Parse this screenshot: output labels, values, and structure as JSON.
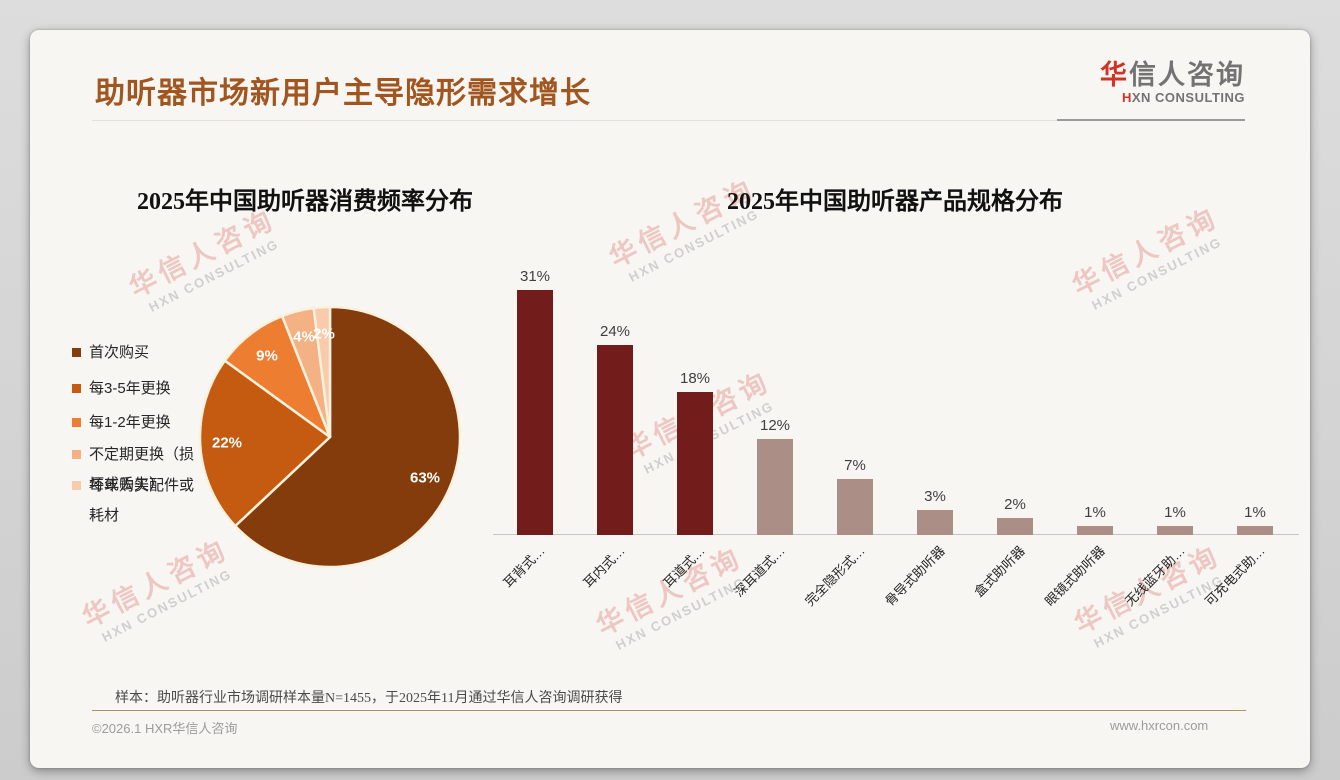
{
  "page": {
    "title": "助听器市场新用户主导隐形需求增长",
    "logo": {
      "zh_first": "华",
      "zh_rest": "信人咨询",
      "en_first": "H",
      "en_rest": "XN CONSULTING"
    },
    "watermark": {
      "zh": "华信人咨询",
      "en": "HXN CONSULTING"
    },
    "footnote": "样本：助听器行业市场调研样本量N=1455，于2025年11月通过华信人咨询调研获得",
    "copyright": "©2026.1 HXR华信人咨询",
    "website": "www.hxrcon.com"
  },
  "colors": {
    "title_text": "#A2561F",
    "logo_red": "#CF3527",
    "logo_gray": "#737373",
    "footer_line": "#B29261",
    "pie_slice_border": "#FBF1DC",
    "bar_dark_red": "#721C1C",
    "bar_rosy_brown": "#AB8E85",
    "watermark_pink": "#E07B76"
  },
  "chart_data": [
    {
      "type": "pie",
      "title": "2025年中国助听器消费频率分布",
      "labels": [
        "首次购买",
        "每3-5年更换",
        "每1-2年更换",
        "不定期更换（损坏或丢失）",
        "每年购买配件或耗材"
      ],
      "values": [
        63,
        22,
        9,
        4,
        2
      ],
      "data_labels": [
        "63%",
        "22%",
        "9%",
        "4%",
        "2%"
      ],
      "colors": [
        "#843C0C",
        "#C55A11",
        "#ED7D31",
        "#F4B183",
        "#F8CBAD"
      ],
      "legend_position": "left",
      "start_angle_deg": 0,
      "direction": "clockwise"
    },
    {
      "type": "bar",
      "title": "2025年中国助听器产品规格分布",
      "categories": [
        "耳背式…",
        "耳内式…",
        "耳道式…",
        "深耳道式…",
        "完全隐形式…",
        "骨导式助听器",
        "盒式助听器",
        "眼镜式助听器",
        "无线蓝牙助…",
        "可充电式助…"
      ],
      "values": [
        31,
        24,
        18,
        12,
        7,
        3,
        2,
        1,
        1,
        1
      ],
      "value_labels": [
        "31%",
        "24%",
        "18%",
        "12%",
        "7%",
        "3%",
        "2%",
        "1%",
        "1%",
        "1%"
      ],
      "bar_colors": [
        "#721C1C",
        "#721C1C",
        "#721C1C",
        "#AB8E85",
        "#AB8E85",
        "#AB8E85",
        "#AB8E85",
        "#AB8E85",
        "#AB8E85",
        "#AB8E85"
      ],
      "xlabel": "",
      "ylabel": "",
      "ylim": [
        0,
        33
      ],
      "grid": false,
      "value_labels_position": "above",
      "x_tick_rotation_deg": 45
    }
  ]
}
